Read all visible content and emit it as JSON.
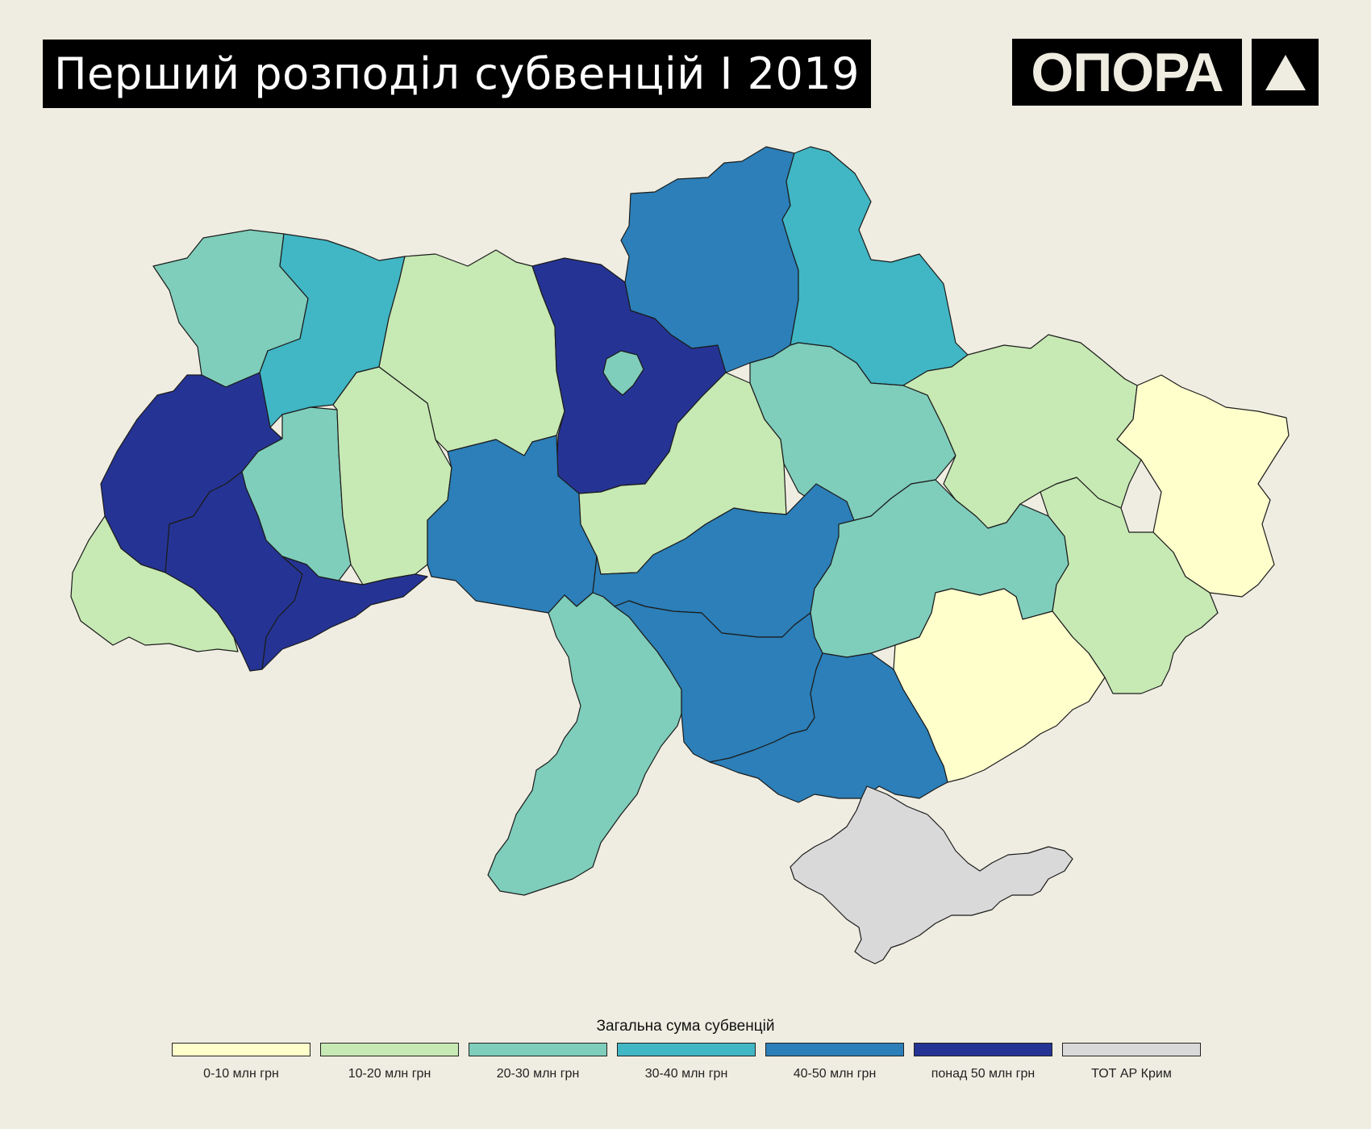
{
  "header": {
    "title": "Перший розподіл субвенцій І 2019",
    "logo_text": "ОПОРА",
    "logo_icon": "triangle-icon"
  },
  "legend": {
    "title": "Загальна сума субвенцій",
    "items": [
      {
        "label": "0-10 млн грн",
        "color": "#FFFFCC"
      },
      {
        "label": "10-20 млн грн",
        "color": "#C7E9B4"
      },
      {
        "label": "20-30 млн грн",
        "color": "#7FCDBB"
      },
      {
        "label": "30-40 млн грн",
        "color": "#41B6C4"
      },
      {
        "label": "40-50 млн грн",
        "color": "#2C7FB8"
      },
      {
        "label": "понад 50 млн грн",
        "color": "#253494"
      },
      {
        "label": "ТОТ АР Крим",
        "color": "#D9D9D9"
      }
    ]
  },
  "map": {
    "regions": [
      {
        "id": "volyn",
        "category": 2
      },
      {
        "id": "rivne",
        "category": 3
      },
      {
        "id": "zhytomyr",
        "category": 1
      },
      {
        "id": "kyiv-oblast",
        "category": 5
      },
      {
        "id": "kyiv-city",
        "category": 2
      },
      {
        "id": "chernihiv",
        "category": 4
      },
      {
        "id": "sumy",
        "category": 3
      },
      {
        "id": "lviv",
        "category": 5
      },
      {
        "id": "ternopil",
        "category": 2
      },
      {
        "id": "khmelnytskyi",
        "category": 1
      },
      {
        "id": "vinnytsia",
        "category": 4
      },
      {
        "id": "cherkasy",
        "category": 1
      },
      {
        "id": "poltava",
        "category": 2
      },
      {
        "id": "kharkiv",
        "category": 1
      },
      {
        "id": "luhansk",
        "category": 0
      },
      {
        "id": "zakarpattia",
        "category": 1
      },
      {
        "id": "ivano-frankivsk",
        "category": 5
      },
      {
        "id": "chernivtsi",
        "category": 5
      },
      {
        "id": "kirovohrad",
        "category": 4
      },
      {
        "id": "dnipropetrovsk",
        "category": 2
      },
      {
        "id": "donetsk",
        "category": 1
      },
      {
        "id": "zaporizhzhia",
        "category": 0
      },
      {
        "id": "odesa",
        "category": 2
      },
      {
        "id": "mykolaiv",
        "category": 4
      },
      {
        "id": "kherson",
        "category": 4
      },
      {
        "id": "crimea",
        "category": 6
      }
    ]
  }
}
